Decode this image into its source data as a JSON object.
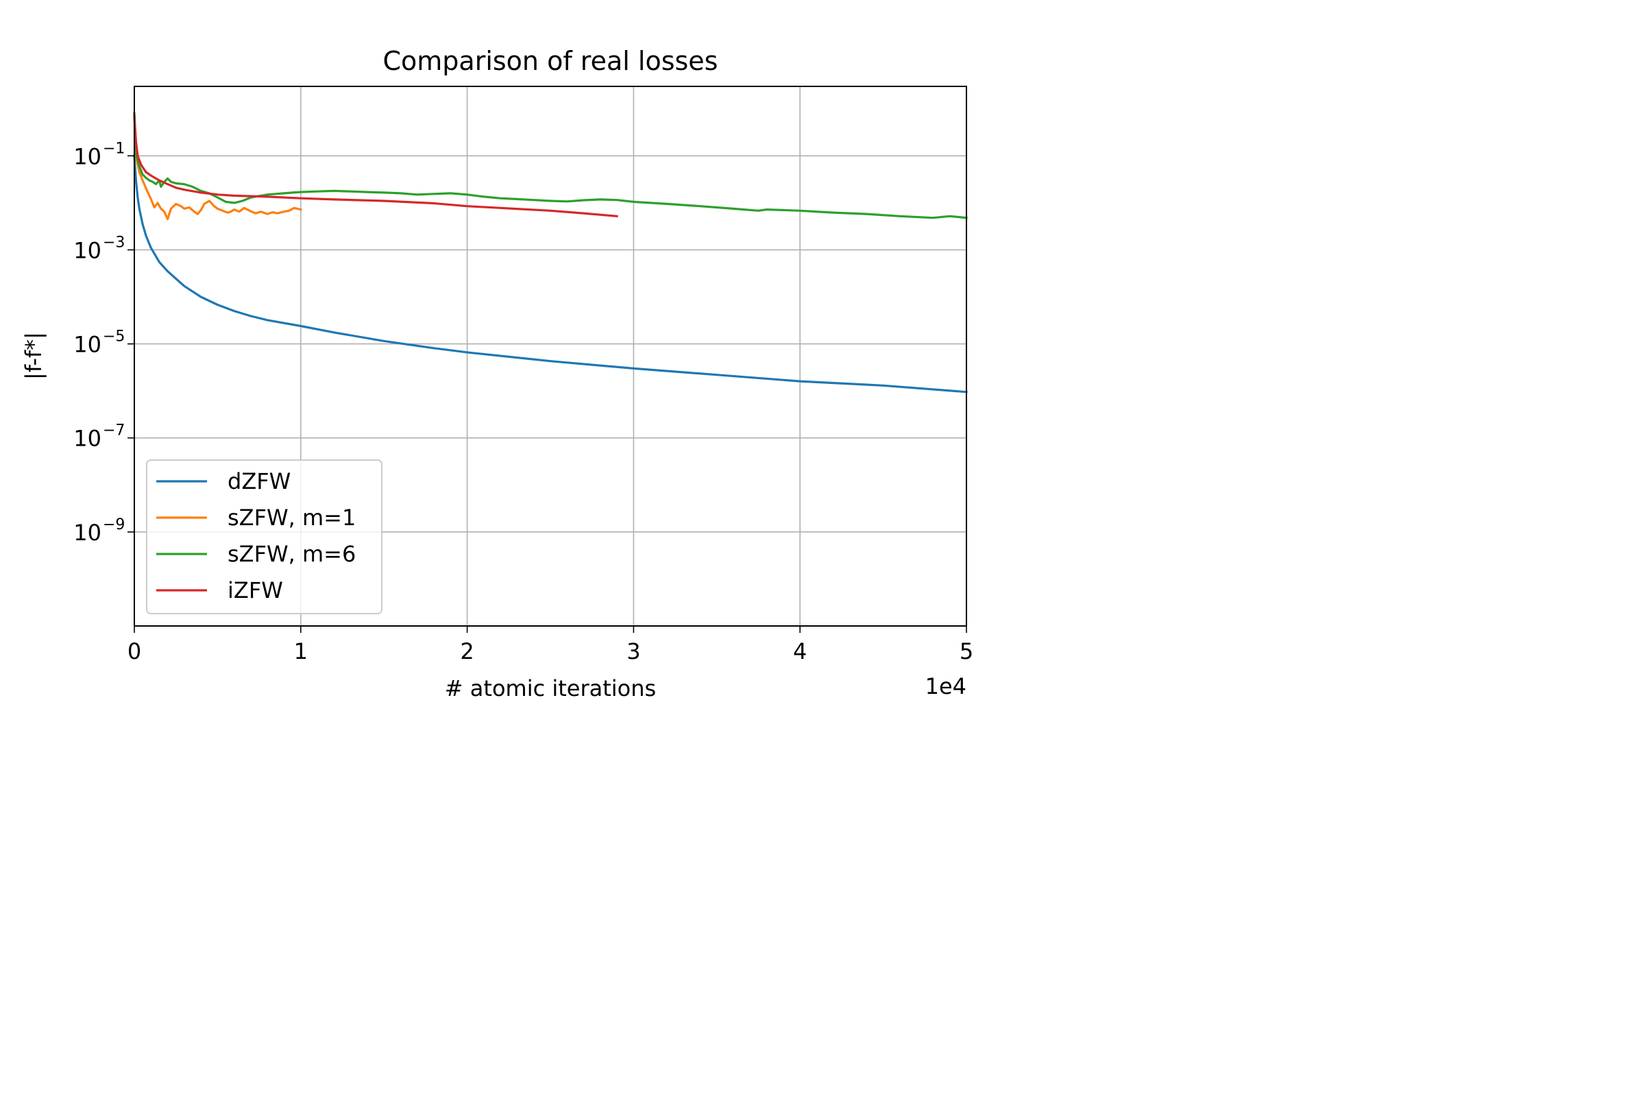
{
  "chart_data": {
    "type": "line",
    "title": "Comparison of real losses",
    "xlabel": "# atomic iterations",
    "ylabel": "|f-f*|",
    "x_offset_text": "1e4",
    "xscale": "linear",
    "yscale": "log",
    "xlim": [
      0,
      50000
    ],
    "ylim": [
      1e-11,
      3
    ],
    "grid": true,
    "legend_position": "lower-left",
    "x_ticks": [
      {
        "value": 0,
        "label": "0"
      },
      {
        "value": 10000,
        "label": "1"
      },
      {
        "value": 20000,
        "label": "2"
      },
      {
        "value": 30000,
        "label": "3"
      },
      {
        "value": 40000,
        "label": "4"
      },
      {
        "value": 50000,
        "label": "5"
      }
    ],
    "y_ticks": [
      {
        "value": 0.1,
        "base": "10",
        "exp": "−1"
      },
      {
        "value": 0.001,
        "base": "10",
        "exp": "−3"
      },
      {
        "value": 1e-05,
        "base": "10",
        "exp": "−5"
      },
      {
        "value": 1e-07,
        "base": "10",
        "exp": "−7"
      },
      {
        "value": 1e-09,
        "base": "10",
        "exp": "−9"
      }
    ],
    "series": [
      {
        "name": "dZFW",
        "color": "#1f77b4",
        "x": [
          0,
          100,
          200,
          300,
          500,
          700,
          1000,
          1500,
          2000,
          3000,
          4000,
          5000,
          6000,
          7000,
          8000,
          10000,
          12000,
          15000,
          18000,
          20000,
          25000,
          30000,
          35000,
          40000,
          45000,
          50000
        ],
        "y": [
          0.1,
          0.03,
          0.013,
          0.0075,
          0.0035,
          0.002,
          0.0011,
          0.00055,
          0.00035,
          0.00017,
          0.0001,
          6.8e-05,
          5e-05,
          3.9e-05,
          3.2e-05,
          2.4e-05,
          1.75e-05,
          1.15e-05,
          8.1e-06,
          6.6e-06,
          4.3e-06,
          3e-06,
          2.2e-06,
          1.6e-06,
          1.3e-06,
          9.5e-07
        ]
      },
      {
        "name": "sZFW, m=1",
        "color": "#ff7f0e",
        "x": [
          0,
          100,
          300,
          500,
          800,
          1000,
          1200,
          1400,
          1600,
          1800,
          2000,
          2200,
          2500,
          2800,
          3000,
          3300,
          3600,
          3800,
          4000,
          4200,
          4500,
          4800,
          5000,
          5300,
          5600,
          5800,
          6000,
          6300,
          6600,
          7000,
          7300,
          7600,
          8000,
          8300,
          8600,
          9000,
          9300,
          9600,
          10000
        ],
        "y": [
          0.8,
          0.1,
          0.045,
          0.03,
          0.017,
          0.012,
          0.008,
          0.01,
          0.0075,
          0.0065,
          0.0045,
          0.0075,
          0.0095,
          0.0085,
          0.0075,
          0.008,
          0.0065,
          0.0058,
          0.007,
          0.0095,
          0.011,
          0.0085,
          0.0075,
          0.0068,
          0.0062,
          0.0065,
          0.0072,
          0.0065,
          0.0078,
          0.0066,
          0.006,
          0.0065,
          0.0058,
          0.0063,
          0.006,
          0.0065,
          0.0068,
          0.0078,
          0.0072
        ]
      },
      {
        "name": "sZFW, m=6",
        "color": "#2ca02c",
        "x": [
          0,
          100,
          300,
          500,
          700,
          900,
          1100,
          1300,
          1500,
          1600,
          1800,
          2000,
          2200,
          2500,
          3000,
          3500,
          4000,
          4500,
          5000,
          5500,
          6000,
          6500,
          7000,
          7500,
          8000,
          8500,
          9000,
          9500,
          10000,
          11000,
          12000,
          13000,
          14000,
          15000,
          16000,
          17000,
          18000,
          19000,
          20000,
          21000,
          22000,
          23000,
          24000,
          25000,
          26000,
          27000,
          28000,
          29000,
          30000,
          32000,
          34000,
          36000,
          37500,
          38000,
          40000,
          42000,
          44000,
          46000,
          48000,
          49000,
          50000
        ],
        "y": [
          0.8,
          0.11,
          0.06,
          0.04,
          0.034,
          0.03,
          0.028,
          0.025,
          0.03,
          0.022,
          0.028,
          0.033,
          0.028,
          0.026,
          0.025,
          0.022,
          0.018,
          0.016,
          0.013,
          0.0105,
          0.01,
          0.011,
          0.013,
          0.014,
          0.015,
          0.0155,
          0.016,
          0.0165,
          0.017,
          0.0175,
          0.018,
          0.0175,
          0.017,
          0.0165,
          0.016,
          0.015,
          0.0155,
          0.016,
          0.015,
          0.0135,
          0.0125,
          0.012,
          0.0115,
          0.011,
          0.0107,
          0.0114,
          0.0118,
          0.0115,
          0.0105,
          0.0095,
          0.0085,
          0.0075,
          0.0068,
          0.0072,
          0.0068,
          0.0062,
          0.0058,
          0.0052,
          0.0048,
          0.0052,
          0.0048
        ]
      },
      {
        "name": "iZFW",
        "color": "#d62728",
        "x": [
          0,
          100,
          200,
          400,
          700,
          1000,
          1500,
          2000,
          2500,
          3000,
          4000,
          5000,
          6000,
          8000,
          10000,
          12000,
          15000,
          18000,
          20000,
          22000,
          25000,
          27000,
          29000
        ],
        "y": [
          0.7,
          0.2,
          0.1,
          0.065,
          0.045,
          0.038,
          0.03,
          0.025,
          0.021,
          0.019,
          0.0165,
          0.015,
          0.0142,
          0.0135,
          0.0125,
          0.0118,
          0.011,
          0.0098,
          0.0085,
          0.0078,
          0.0068,
          0.006,
          0.0052
        ]
      }
    ]
  }
}
